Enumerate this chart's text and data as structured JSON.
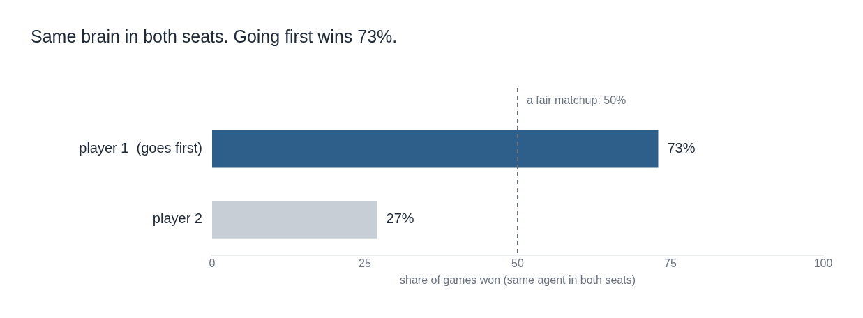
{
  "chart_data": {
    "type": "bar",
    "orientation": "horizontal",
    "title": "Same brain in both seats. Going first wins 73%.",
    "xlabel": "share of games won (same agent in both seats)",
    "categories": [
      "player 1  (goes first)",
      "player 2"
    ],
    "values": [
      73,
      27
    ],
    "colors": [
      "#2e5f8a",
      "#c8ced6"
    ],
    "value_labels": [
      "73%",
      "27%"
    ],
    "xlim": [
      0,
      100
    ],
    "xticks": [
      0,
      25,
      50,
      75,
      100
    ],
    "grid": false,
    "ref_lines": [
      {
        "axis": "x",
        "value": 50,
        "label": "a fair matchup: 50%",
        "color": "#6b7280",
        "line_style": "dashed"
      }
    ]
  }
}
